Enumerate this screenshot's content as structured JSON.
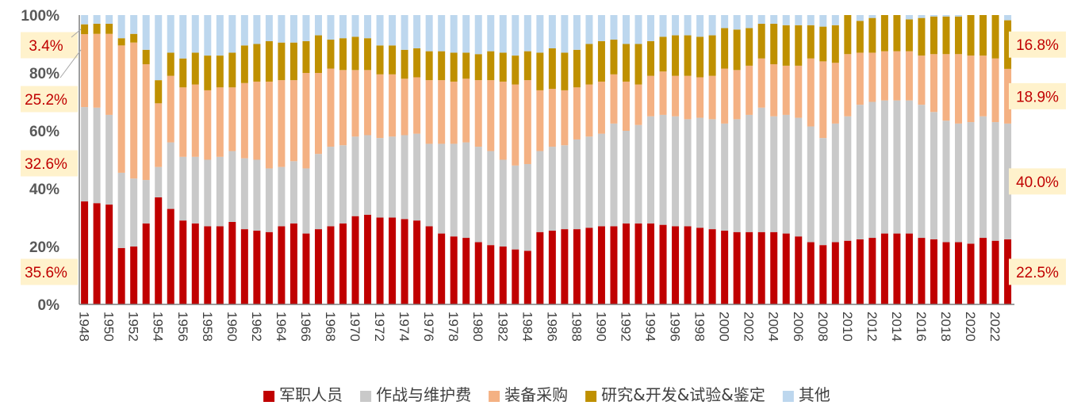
{
  "chart_data": {
    "type": "bar",
    "stacked": true,
    "percent": true,
    "title": "",
    "xlabel": "",
    "ylabel": "",
    "ylim": [
      0,
      100
    ],
    "yticks": [
      "0%",
      "20%",
      "40%",
      "60%",
      "80%",
      "100%"
    ],
    "categories": [
      "1948",
      "1949",
      "1950",
      "1951",
      "1952",
      "1953",
      "1954",
      "1955",
      "1956",
      "1957",
      "1958",
      "1959",
      "1960",
      "1961",
      "1962",
      "1963",
      "1964",
      "1965",
      "1966",
      "1967",
      "1968",
      "1969",
      "1970",
      "1971",
      "1972",
      "1973",
      "1974",
      "1975",
      "1976",
      "1977",
      "1978",
      "1979",
      "1980",
      "1981",
      "1982",
      "1983",
      "1984",
      "1985",
      "1986",
      "1987",
      "1988",
      "1989",
      "1990",
      "1991",
      "1992",
      "1993",
      "1994",
      "1995",
      "1996",
      "1997",
      "1998",
      "1999",
      "2000",
      "2001",
      "2002",
      "2003",
      "2004",
      "2005",
      "2006",
      "2007",
      "2008",
      "2009",
      "2010",
      "2011",
      "2012",
      "2013",
      "2014",
      "2015",
      "2016",
      "2017",
      "2018",
      "2019",
      "2020",
      "2021",
      "2022",
      "2023"
    ],
    "xtick_labels": [
      "1948",
      "1950",
      "1952",
      "1954",
      "1956",
      "1958",
      "1960",
      "1962",
      "1964",
      "1966",
      "1968",
      "1970",
      "1972",
      "1974",
      "1976",
      "1978",
      "1980",
      "1982",
      "1984",
      "1986",
      "1988",
      "1990",
      "1992",
      "1994",
      "1996",
      "1998",
      "2000",
      "2002",
      "2004",
      "2006",
      "2008",
      "2010",
      "2012",
      "2014",
      "2016",
      "2018",
      "2020",
      "2022"
    ],
    "legend_position": "bottom",
    "series": [
      {
        "name": "军职人员",
        "color": "#c00000",
        "values": [
          35.6,
          35,
          34.5,
          19.5,
          20,
          28,
          37,
          33,
          29,
          28,
          27,
          27,
          28.5,
          26,
          25.5,
          25,
          27,
          28,
          24.5,
          26,
          27,
          28,
          30.5,
          31,
          30,
          30,
          29.5,
          29,
          27,
          24.5,
          23.5,
          23,
          21.5,
          20.5,
          20,
          19,
          18.5,
          25,
          25.5,
          26,
          26,
          26.5,
          27,
          27,
          28,
          28,
          28,
          27.5,
          27,
          27,
          26.5,
          26,
          25.5,
          25,
          25,
          25,
          25,
          24.5,
          23.5,
          21.5,
          20.5,
          21.5,
          22,
          22.5,
          23,
          24.5,
          24.5,
          24.5,
          23,
          22.5,
          21.5,
          21.5,
          21,
          23,
          22,
          22.5
        ]
      },
      {
        "name": "作战与维护费",
        "color": "#c9c9c9",
        "values": [
          32.6,
          33,
          31,
          26,
          23.5,
          15,
          10.5,
          23,
          22,
          23,
          23,
          24,
          24.5,
          24.5,
          24.5,
          22,
          20.5,
          21.5,
          22.5,
          26,
          27.5,
          27,
          27.5,
          27.5,
          27.5,
          28,
          29,
          30,
          28.5,
          31,
          32,
          33,
          33,
          32.5,
          30,
          29,
          30,
          28,
          29,
          29,
          31,
          31.5,
          32,
          35.5,
          32,
          34,
          37,
          38,
          38,
          37,
          38,
          38,
          37,
          39,
          40.5,
          43,
          40,
          41,
          41,
          40,
          37,
          41,
          43,
          46.5,
          47,
          46,
          46,
          46,
          46,
          44,
          42,
          41,
          42,
          42,
          41,
          40
        ]
      },
      {
        "name": "装备采购",
        "color": "#f4b183",
        "values": [
          25.2,
          25.5,
          28,
          44,
          47,
          40,
          22,
          23,
          24,
          25,
          24,
          24,
          22,
          26,
          27,
          30,
          30,
          28,
          33,
          28,
          27,
          26,
          23,
          22.5,
          22,
          21.5,
          19.5,
          19.5,
          22,
          22,
          21.5,
          22,
          23,
          24.5,
          27,
          28,
          29,
          21,
          20,
          19,
          18,
          18,
          18,
          17,
          17,
          14,
          14,
          15,
          14,
          15,
          14,
          15,
          19,
          17,
          17,
          17,
          18,
          17,
          18,
          23.5,
          26.5,
          21,
          21.5,
          18,
          17,
          17,
          17,
          17,
          17,
          20,
          23,
          24,
          23,
          21,
          22,
          18.9
        ]
      },
      {
        "name": "研究&开发&试验&鉴定",
        "color": "#bf9000",
        "values": [
          3.4,
          3.5,
          3.5,
          2.5,
          3,
          5,
          8,
          8,
          10,
          11,
          12,
          11,
          12,
          13,
          13,
          14,
          13,
          13,
          11,
          13,
          10,
          11,
          11.5,
          11,
          10,
          10,
          10,
          10,
          10,
          10,
          10,
          9,
          9,
          10,
          10,
          10,
          10,
          13,
          14,
          13,
          13,
          14,
          14,
          12,
          13,
          14,
          12,
          12,
          14,
          14,
          14,
          14,
          14,
          14,
          13,
          12,
          14,
          14,
          14,
          11.5,
          12,
          13,
          14,
          11,
          12,
          13,
          13,
          11,
          13,
          13,
          13,
          13,
          14,
          16,
          16,
          16.8
        ]
      },
      {
        "name": "其他",
        "color": "#bdd7ee",
        "values": [
          3.2,
          3,
          3,
          8,
          6.5,
          12,
          22.5,
          13,
          15,
          13,
          14,
          14,
          13,
          10.5,
          10,
          9,
          9.5,
          9.5,
          9,
          7,
          8.5,
          8,
          7.5,
          8,
          10.5,
          10.5,
          12,
          11.5,
          12.5,
          12.5,
          13,
          13,
          13.5,
          12.5,
          13,
          14,
          12.5,
          13,
          11.5,
          13,
          12,
          10,
          9,
          8.5,
          10,
          10,
          9,
          7.5,
          7,
          7,
          7.5,
          7,
          4.5,
          5,
          4.5,
          3,
          3,
          3.5,
          3.5,
          3.5,
          4,
          3.5,
          -0.5,
          2,
          1,
          0.5,
          -0.5,
          1.5,
          1,
          0.5,
          0.5,
          0.5,
          0,
          -2,
          -1,
          1.8
        ]
      }
    ],
    "callouts_left": [
      {
        "label": "3.4%",
        "value": 3.4,
        "series": 3
      },
      {
        "label": "25.2%",
        "value": 25.2,
        "series": 2
      },
      {
        "label": "32.6%",
        "value": 32.6,
        "series": 1
      },
      {
        "label": "35.6%",
        "value": 35.6,
        "series": 0
      }
    ],
    "callouts_right": [
      {
        "label": "16.8%",
        "value": 16.8,
        "series": 3
      },
      {
        "label": "18.9%",
        "value": 18.9,
        "series": 2
      },
      {
        "label": "40.0%",
        "value": 40.0,
        "series": 1
      },
      {
        "label": "22.5%",
        "value": 22.5,
        "series": 0
      }
    ],
    "callout_bg": "#fff2cc",
    "callout_text_color": "#c00000"
  }
}
